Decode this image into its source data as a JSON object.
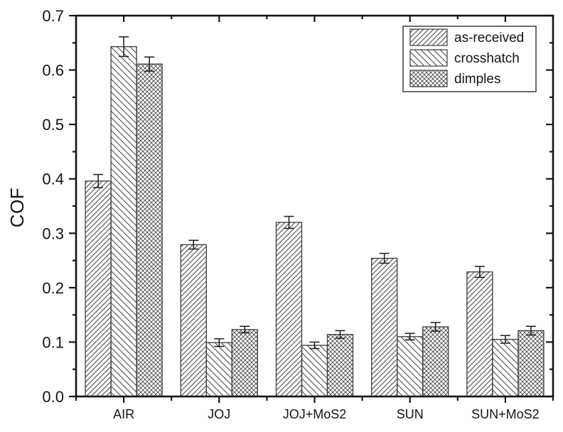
{
  "chart_data": {
    "type": "bar",
    "title": "",
    "xlabel": "",
    "ylabel": "COF",
    "ylim": [
      0.0,
      0.7
    ],
    "ytick_major_step": 0.1,
    "ytick_minor_step": 0.05,
    "ytick_labels": [
      "0.0",
      "0.1",
      "0.2",
      "0.3",
      "0.4",
      "0.5",
      "0.6",
      "0.7"
    ],
    "grid": false,
    "frame": "full-box",
    "categories": [
      "AIR",
      "JOJ",
      "JOJ+MoS2",
      "SUN",
      "SUN+MoS2"
    ],
    "series": [
      {
        "name": "as-received",
        "pattern": "diagonal-forward",
        "values": [
          0.396,
          0.279,
          0.32,
          0.254,
          0.229
        ],
        "errors": [
          0.012,
          0.008,
          0.011,
          0.009,
          0.01
        ]
      },
      {
        "name": "crosshatch",
        "pattern": "diagonal-backward",
        "values": [
          0.643,
          0.099,
          0.094,
          0.11,
          0.105
        ],
        "errors": [
          0.018,
          0.007,
          0.006,
          0.006,
          0.007
        ]
      },
      {
        "name": "dimples",
        "pattern": "diagonal-cross",
        "values": [
          0.611,
          0.123,
          0.114,
          0.128,
          0.121
        ],
        "errors": [
          0.013,
          0.006,
          0.007,
          0.008,
          0.008
        ]
      }
    ],
    "legend": {
      "position": "top-right",
      "entries": [
        "as-received",
        "crosshatch",
        "dimples"
      ]
    },
    "colors": {
      "background": "#ffffff",
      "axis": "#141414",
      "text": "#141414",
      "bar_outline": "#3c3c3c",
      "hatch_line": "#4a4a4a",
      "error_bar": "#1a1a1a",
      "legend_border": "#3c3c3c"
    }
  }
}
